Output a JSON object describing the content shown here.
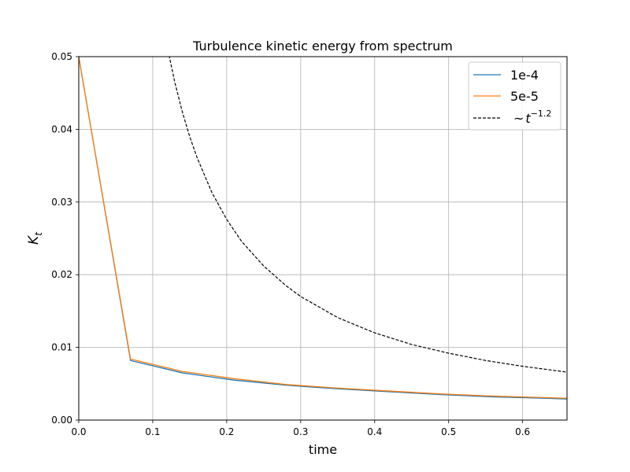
{
  "chart_data": {
    "type": "line",
    "title": "Turbulence kinetic energy from spectrum",
    "xlabel": "time",
    "ylabel": "K",
    "ylabel_sub": "t",
    "xlim": [
      0,
      0.66
    ],
    "ylim": [
      0,
      0.05
    ],
    "xticks": [
      0.0,
      0.1,
      0.2,
      0.3,
      0.4,
      0.5,
      0.6
    ],
    "xtick_labels": [
      "0.0",
      "0.1",
      "0.2",
      "0.3",
      "0.4",
      "0.5",
      "0.6"
    ],
    "yticks": [
      0.0,
      0.01,
      0.02,
      0.03,
      0.04,
      0.05
    ],
    "ytick_labels": [
      "0.00",
      "0.01",
      "0.02",
      "0.03",
      "0.04",
      "0.05"
    ],
    "grid": true,
    "legend_position": "top-right",
    "series": [
      {
        "name": "1e-4",
        "color": "#1f77b4",
        "style": "solid",
        "x": [
          0.0,
          0.07,
          0.14,
          0.21,
          0.28,
          0.35,
          0.42,
          0.49,
          0.56,
          0.63,
          0.66
        ],
        "y": [
          0.05,
          0.0082,
          0.0065,
          0.0055,
          0.0048,
          0.0043,
          0.0039,
          0.0035,
          0.0032,
          0.003,
          0.0029
        ]
      },
      {
        "name": "5e-5",
        "color": "#ff7f0e",
        "style": "solid",
        "x": [
          0.0,
          0.07,
          0.14,
          0.21,
          0.28,
          0.35,
          0.42,
          0.49,
          0.56,
          0.63,
          0.66
        ],
        "y": [
          0.05,
          0.0084,
          0.0067,
          0.0057,
          0.0049,
          0.0044,
          0.004,
          0.0036,
          0.0033,
          0.0031,
          0.003
        ]
      },
      {
        "name": "~t^-1.2",
        "legend_prefix": "~",
        "legend_base": "t",
        "legend_exp": "−1.2",
        "color": "#000000",
        "style": "dashed",
        "x": [
          0.122,
          0.13,
          0.14,
          0.15,
          0.16,
          0.18,
          0.2,
          0.22,
          0.25,
          0.28,
          0.3,
          0.35,
          0.4,
          0.45,
          0.5,
          0.55,
          0.6,
          0.66
        ],
        "y": [
          0.0502,
          0.0464,
          0.0424,
          0.039,
          0.0361,
          0.0313,
          0.0276,
          0.0246,
          0.0212,
          0.0185,
          0.017,
          0.0141,
          0.012,
          0.0104,
          0.0092,
          0.0082,
          0.0074,
          0.0066
        ]
      }
    ]
  }
}
